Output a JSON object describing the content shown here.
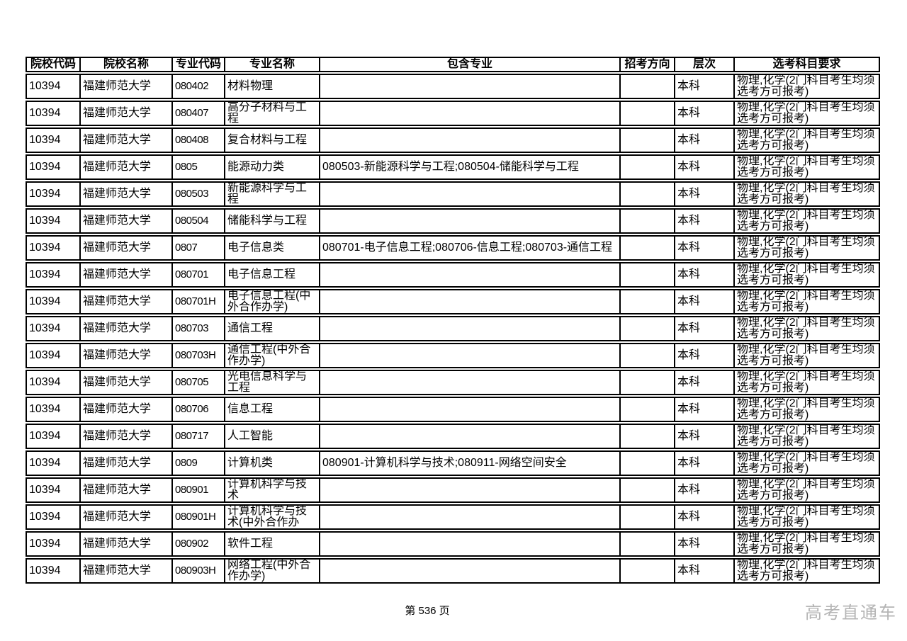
{
  "page": {
    "footer": {
      "page_label": "第 536 页",
      "watermark": "高考直通车"
    }
  },
  "colors": {
    "background": "#ffffff",
    "border": "#000000",
    "text": "#000000",
    "watermark": "#b5b5b5"
  },
  "table": {
    "columns": [
      {
        "key": "college_code",
        "label": "院校代码"
      },
      {
        "key": "college_name",
        "label": "院校名称"
      },
      {
        "key": "major_code",
        "label": "专业代码"
      },
      {
        "key": "major_name",
        "label": "专业名称"
      },
      {
        "key": "included_majors",
        "label": "包含专业"
      },
      {
        "key": "direction",
        "label": "招考方向"
      },
      {
        "key": "level",
        "label": "层次"
      },
      {
        "key": "subject_req",
        "label": "选考科目要求"
      }
    ],
    "rows": [
      {
        "college_code": "10394",
        "college_name": "福建师范大学",
        "major_code": "080402",
        "major_name": "材料物理",
        "included_majors": "",
        "direction": "",
        "level": "本科",
        "subject_req": "物理,化学(2门科目考生均须选考方可报考)"
      },
      {
        "college_code": "10394",
        "college_name": "福建师范大学",
        "major_code": "080407",
        "major_name": "高分子材料与工程",
        "included_majors": "",
        "direction": "",
        "level": "本科",
        "subject_req": "物理,化学(2门科目考生均须选考方可报考)"
      },
      {
        "college_code": "10394",
        "college_name": "福建师范大学",
        "major_code": "080408",
        "major_name": "复合材料与工程",
        "included_majors": "",
        "direction": "",
        "level": "本科",
        "subject_req": "物理,化学(2门科目考生均须选考方可报考)"
      },
      {
        "college_code": "10394",
        "college_name": "福建师范大学",
        "major_code": "0805",
        "major_name": "能源动力类",
        "included_majors": "080503-新能源科学与工程;080504-储能科学与工程",
        "direction": "",
        "level": "本科",
        "subject_req": "物理,化学(2门科目考生均须选考方可报考)"
      },
      {
        "college_code": "10394",
        "college_name": "福建师范大学",
        "major_code": "080503",
        "major_name": "新能源科学与工程",
        "included_majors": "",
        "direction": "",
        "level": "本科",
        "subject_req": "物理,化学(2门科目考生均须选考方可报考)"
      },
      {
        "college_code": "10394",
        "college_name": "福建师范大学",
        "major_code": "080504",
        "major_name": "储能科学与工程",
        "included_majors": "",
        "direction": "",
        "level": "本科",
        "subject_req": "物理,化学(2门科目考生均须选考方可报考)"
      },
      {
        "college_code": "10394",
        "college_name": "福建师范大学",
        "major_code": "0807",
        "major_name": "电子信息类",
        "included_majors": "080701-电子信息工程;080706-信息工程;080703-通信工程",
        "direction": "",
        "level": "本科",
        "subject_req": "物理,化学(2门科目考生均须选考方可报考)"
      },
      {
        "college_code": "10394",
        "college_name": "福建师范大学",
        "major_code": "080701",
        "major_name": "电子信息工程",
        "included_majors": "",
        "direction": "",
        "level": "本科",
        "subject_req": "物理,化学(2门科目考生均须选考方可报考)"
      },
      {
        "college_code": "10394",
        "college_name": "福建师范大学",
        "major_code": "080701H",
        "major_name": "电子信息工程(中外合作办学)",
        "included_majors": "",
        "direction": "",
        "level": "本科",
        "subject_req": "物理,化学(2门科目考生均须选考方可报考)"
      },
      {
        "college_code": "10394",
        "college_name": "福建师范大学",
        "major_code": "080703",
        "major_name": "通信工程",
        "included_majors": "",
        "direction": "",
        "level": "本科",
        "subject_req": "物理,化学(2门科目考生均须选考方可报考)"
      },
      {
        "college_code": "10394",
        "college_name": "福建师范大学",
        "major_code": "080703H",
        "major_name": "通信工程(中外合作办学)",
        "included_majors": "",
        "direction": "",
        "level": "本科",
        "subject_req": "物理,化学(2门科目考生均须选考方可报考)"
      },
      {
        "college_code": "10394",
        "college_name": "福建师范大学",
        "major_code": "080705",
        "major_name": "光电信息科学与工程",
        "included_majors": "",
        "direction": "",
        "level": "本科",
        "subject_req": "物理,化学(2门科目考生均须选考方可报考)"
      },
      {
        "college_code": "10394",
        "college_name": "福建师范大学",
        "major_code": "080706",
        "major_name": "信息工程",
        "included_majors": "",
        "direction": "",
        "level": "本科",
        "subject_req": "物理,化学(2门科目考生均须选考方可报考)"
      },
      {
        "college_code": "10394",
        "college_name": "福建师范大学",
        "major_code": "080717",
        "major_name": "人工智能",
        "included_majors": "",
        "direction": "",
        "level": "本科",
        "subject_req": "物理,化学(2门科目考生均须选考方可报考)"
      },
      {
        "college_code": "10394",
        "college_name": "福建师范大学",
        "major_code": "0809",
        "major_name": "计算机类",
        "included_majors": "080901-计算机科学与技术;080911-网络空间安全",
        "direction": "",
        "level": "本科",
        "subject_req": "物理,化学(2门科目考生均须选考方可报考)"
      },
      {
        "college_code": "10394",
        "college_name": "福建师范大学",
        "major_code": "080901",
        "major_name": "计算机科学与技术",
        "included_majors": "",
        "direction": "",
        "level": "本科",
        "subject_req": "物理,化学(2门科目考生均须选考方可报考)"
      },
      {
        "college_code": "10394",
        "college_name": "福建师范大学",
        "major_code": "080901H",
        "major_name": "计算机科学与技术(中外合作办",
        "included_majors": "",
        "direction": "",
        "level": "本科",
        "subject_req": "物理,化学(2门科目考生均须选考方可报考)"
      },
      {
        "college_code": "10394",
        "college_name": "福建师范大学",
        "major_code": "080902",
        "major_name": "软件工程",
        "included_majors": "",
        "direction": "",
        "level": "本科",
        "subject_req": "物理,化学(2门科目考生均须选考方可报考)"
      },
      {
        "college_code": "10394",
        "college_name": "福建师范大学",
        "major_code": "080903H",
        "major_name": "网络工程(中外合作办学)",
        "included_majors": "",
        "direction": "",
        "level": "本科",
        "subject_req": "物理,化学(2门科目考生均须选考方可报考)"
      }
    ]
  }
}
